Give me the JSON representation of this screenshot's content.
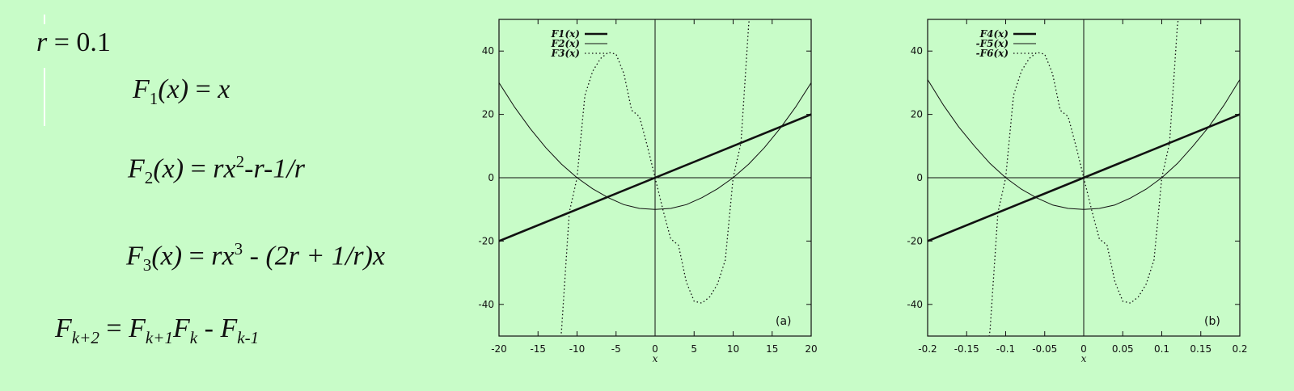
{
  "equations": {
    "r": {
      "lhs": "r",
      "eq": " = ",
      "val": "0.1"
    },
    "f1": {
      "F": "F",
      "sub": "1",
      "arg": "(x)",
      "eq": " = ",
      "rhs": "x"
    },
    "f2": {
      "F": "F",
      "sub": "2",
      "arg": "(x)",
      "eq": " = ",
      "rhs_a": "rx",
      "sup": "2",
      "rhs_b": "-r-1/r"
    },
    "f3": {
      "F": "F",
      "sub": "3",
      "arg": "(x)",
      "eq": " = ",
      "rhs_a": "rx",
      "sup": "3",
      "rhs_b": " - (2r + 1/r)x"
    },
    "rec": {
      "F1": "F",
      "s1": "k+2",
      "eq": " = ",
      "F2": "F",
      "s2": "k+1",
      "F3": "F",
      "s3": "k",
      "minus": " - ",
      "F4": "F",
      "s4": "k-1"
    }
  },
  "chart_data": [
    {
      "type": "line",
      "panel_label": "(a)",
      "xlabel": "x",
      "xlim": [
        -20,
        20
      ],
      "ylim": [
        -50,
        50
      ],
      "xticks": [
        -20,
        -15,
        -10,
        -5,
        0,
        5,
        10,
        15,
        20
      ],
      "xtick_labels": [
        "-20",
        "-15",
        "-10",
        "-5",
        "0",
        "5",
        "10",
        "15",
        "20"
      ],
      "yticks": [
        -40,
        -20,
        0,
        20,
        40
      ],
      "ytick_labels": [
        "-40",
        "-20",
        "0",
        "20",
        "40"
      ],
      "legend_position": "top-left",
      "series": [
        {
          "name": "F1(x)",
          "style": "thick",
          "x": [
            -20,
            20
          ],
          "y": [
            -20,
            20
          ]
        },
        {
          "name": "F2(x)",
          "style": "solid",
          "x": [
            -20,
            -18,
            -16,
            -14,
            -12,
            -10,
            -8,
            -6,
            -4,
            -2,
            0,
            2,
            4,
            6,
            8,
            10,
            12,
            14,
            16,
            18,
            20
          ],
          "y": [
            30,
            22.3,
            15.5,
            9.5,
            4.3,
            0,
            -3.5,
            -6.3,
            -8.5,
            -9.7,
            -10,
            -9.7,
            -8.5,
            -6.3,
            -3.5,
            0,
            4.3,
            9.5,
            15.5,
            22.3,
            30
          ]
        },
        {
          "name": "F3(x)",
          "style": "dotted",
          "x": [
            -12.5,
            -12,
            -11,
            -10,
            -9,
            -8,
            -7,
            -6,
            -5,
            -4,
            -3,
            -2,
            -1,
            0,
            1,
            2,
            3,
            4,
            5,
            6,
            7,
            8,
            9,
            10,
            11,
            12,
            12.5
          ],
          "y": [
            -57.1,
            -48.7,
            -11.0,
            0,
            26.0,
            33.6,
            37.6,
            39.6,
            39.0,
            32.9,
            21.3,
            19.3,
            10.1,
            0,
            -10.1,
            -19.3,
            -21.3,
            -32.9,
            -39.0,
            -39.6,
            -37.6,
            -33.6,
            -26.0,
            0,
            11.0,
            48.7,
            57.1
          ]
        }
      ]
    },
    {
      "type": "line",
      "panel_label": "(b)",
      "xlabel": "x",
      "xlim": [
        -0.2,
        0.2
      ],
      "ylim": [
        -50,
        50
      ],
      "xticks": [
        -0.2,
        -0.15,
        -0.1,
        -0.05,
        0,
        0.05,
        0.1,
        0.15,
        0.2
      ],
      "xtick_labels": [
        "-0.2",
        "-0.15",
        "-0.1",
        "-0.05",
        "0",
        "0.05",
        "0.1",
        "0.15",
        "0.2"
      ],
      "yticks": [
        -40,
        -20,
        0,
        20,
        40
      ],
      "ytick_labels": [
        "-40",
        "-20",
        "0",
        "20",
        "40"
      ],
      "legend_position": "top-left",
      "series": [
        {
          "name": "F4(x)",
          "style": "thick",
          "x": [
            -0.2,
            0.2
          ],
          "y": [
            -20,
            20
          ]
        },
        {
          "name": "-F5(x)",
          "style": "solid",
          "x": [
            -0.2,
            -0.18,
            -0.16,
            -0.14,
            -0.12,
            -0.1,
            -0.08,
            -0.06,
            -0.04,
            -0.02,
            0,
            0.02,
            0.04,
            0.06,
            0.08,
            0.1,
            0.12,
            0.14,
            0.16,
            0.18,
            0.2
          ],
          "y": [
            31,
            23,
            16,
            10,
            4.5,
            0,
            -3.6,
            -6.4,
            -8.6,
            -9.7,
            -10,
            -9.7,
            -8.6,
            -6.4,
            -3.6,
            0,
            4.5,
            10,
            16,
            23,
            31
          ]
        },
        {
          "name": "-F6(x)",
          "style": "dotted",
          "x": [
            -0.125,
            -0.12,
            -0.11,
            -0.1,
            -0.09,
            -0.08,
            -0.07,
            -0.06,
            -0.05,
            -0.04,
            -0.03,
            -0.02,
            -0.01,
            0,
            0.01,
            0.02,
            0.03,
            0.04,
            0.05,
            0.06,
            0.07,
            0.08,
            0.09,
            0.1,
            0.11,
            0.12,
            0.125
          ],
          "y": [
            -57,
            -48,
            -11,
            0,
            26,
            33.6,
            37.6,
            39.6,
            39,
            32.9,
            21.3,
            19.3,
            10.1,
            0,
            -10.1,
            -19.3,
            -21.3,
            -32.9,
            -39,
            -39.6,
            -37.6,
            -33.6,
            -26,
            0,
            11,
            48,
            57
          ]
        }
      ]
    }
  ]
}
